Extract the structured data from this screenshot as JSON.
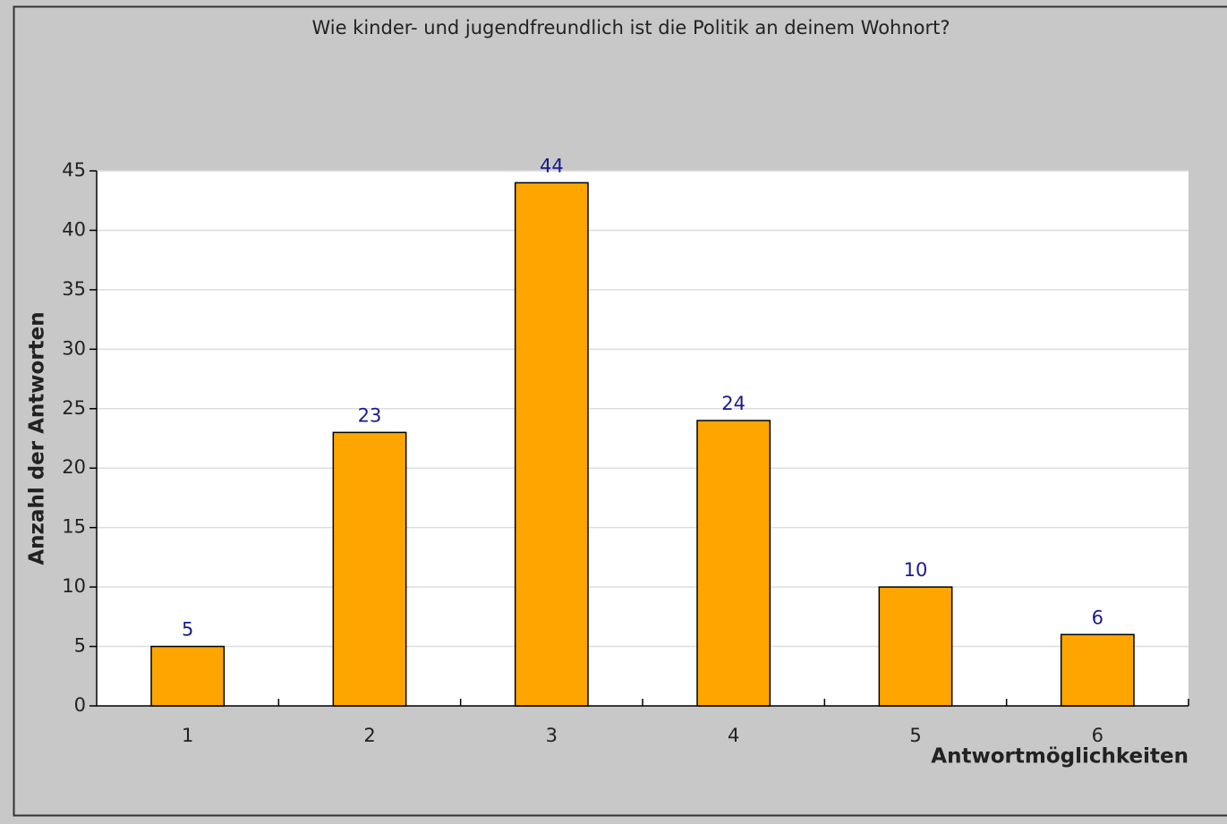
{
  "chart_data": {
    "type": "bar",
    "title": "Wie kinder- und jugendfreundlich ist die Politik an deinem Wohnort?",
    "x_label": "Antwortmöglichkeiten",
    "y_label": "Anzahl der Antworten",
    "categories": [
      "1",
      "2",
      "3",
      "4",
      "5",
      "6"
    ],
    "values": [
      5,
      23,
      44,
      24,
      10,
      6
    ],
    "color": "#ffa500",
    "label_color": "#1a1a8c",
    "ylim": [
      0,
      45
    ],
    "yticks": [
      0,
      5,
      10,
      15,
      20,
      25,
      30,
      35,
      40,
      45
    ],
    "grid": true
  }
}
